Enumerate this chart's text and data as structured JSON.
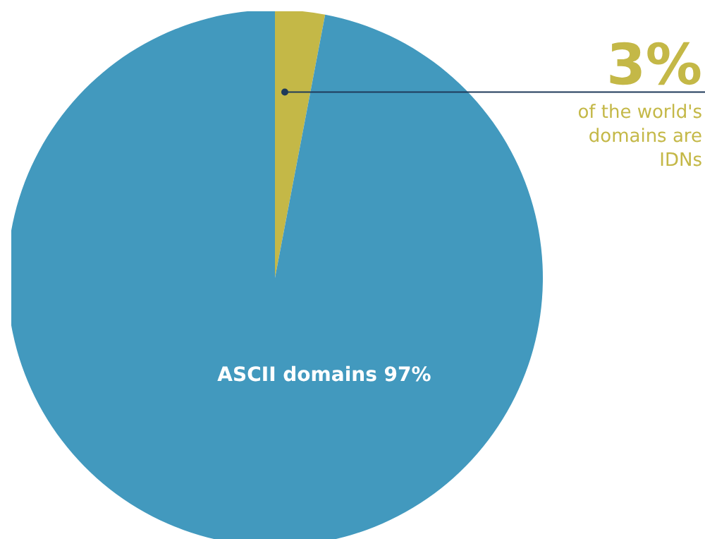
{
  "chart_data": {
    "type": "pie",
    "categories": [
      "of the world's domains are IDNs",
      "ASCII domains"
    ],
    "values": [
      3,
      97
    ],
    "colors": [
      "#c4b847",
      "#4299be"
    ],
    "value_labels": [
      "3%",
      "97%"
    ],
    "legend": false
  }
}
